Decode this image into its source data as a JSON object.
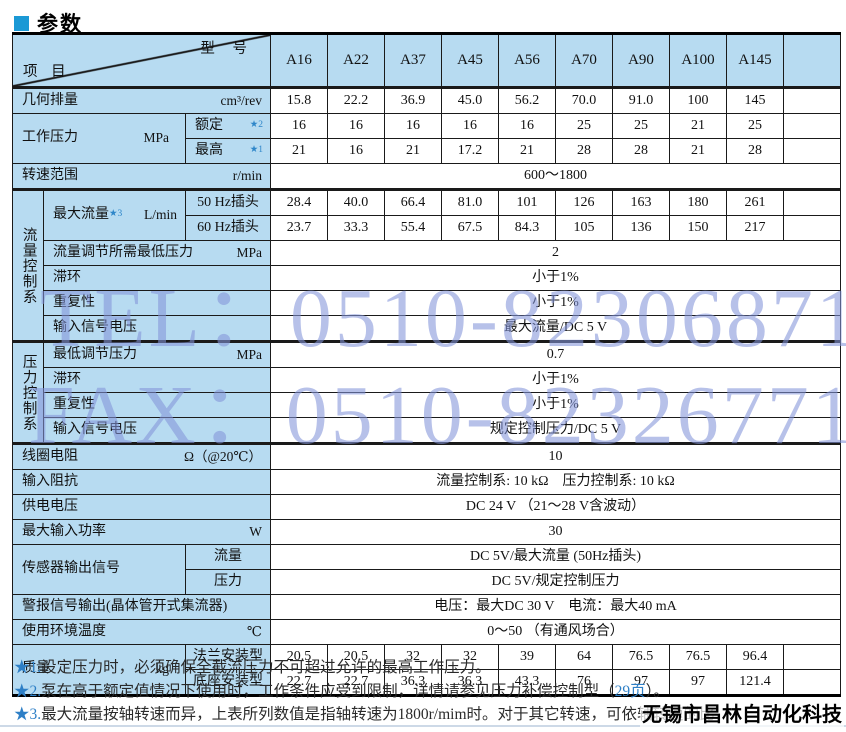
{
  "page": {
    "title": "参数"
  },
  "watermark": {
    "line1": "TEL：0510-82306871",
    "line2": "FAX：0510-82326771",
    "color": "#8495da"
  },
  "brand_overlay": "无锡市昌林自动化科技",
  "colors": {
    "header_bg": "#b7dbf1",
    "accent_blue": "#2e86c9",
    "title_square": "#1b99d5"
  },
  "table": {
    "corner": {
      "model_label": "型 号",
      "item_label": "项 目"
    },
    "models": [
      "A16",
      "A22",
      "A37",
      "A45",
      "A56",
      "A70",
      "A90",
      "A100",
      "A145"
    ],
    "rows": {
      "displacement": {
        "label": "几何排量",
        "unit": "cm³/rev",
        "values": [
          "15.8",
          "22.2",
          "36.9",
          "45.0",
          "56.2",
          "70.0",
          "91.0",
          "100",
          "145"
        ]
      },
      "working_pressure": {
        "label": "工作压力",
        "unit": "MPa",
        "rated": {
          "label": "额定",
          "star": "★2",
          "values": [
            "16",
            "16",
            "16",
            "16",
            "16",
            "25",
            "25",
            "21",
            "25"
          ]
        },
        "max": {
          "label": "最高",
          "star": "★1",
          "values": [
            "21",
            "16",
            "21",
            "17.2",
            "21",
            "28",
            "28",
            "21",
            "28"
          ]
        }
      },
      "speed_range": {
        "label": "转速范围",
        "unit": "r/min",
        "value": "600～1800"
      },
      "flow": {
        "section_label": "流量控制系",
        "max_flow": {
          "label": "最大流量",
          "star": "★3",
          "unit": "L/min",
          "hz50": {
            "label": "50 Hz插头",
            "values": [
              "28.4",
              "40.0",
              "66.4",
              "81.0",
              "101",
              "126",
              "163",
              "180",
              "261"
            ]
          },
          "hz60": {
            "label": "60 Hz插头",
            "values": [
              "23.7",
              "33.3",
              "55.4",
              "67.5",
              "84.3",
              "105",
              "136",
              "150",
              "217"
            ]
          }
        },
        "min_pressure": {
          "label": "流量调节所需最低压力",
          "unit": "MPa",
          "value": "2"
        },
        "hysteresis": {
          "label": "滞环",
          "value": "小于1%"
        },
        "repeatability": {
          "label": "重复性",
          "value": "小于1%"
        },
        "input_signal": {
          "label": "输入信号电压",
          "value": "最大流量/DC 5 V"
        }
      },
      "pressure": {
        "section_label": "压力控制系",
        "min_adjust": {
          "label": "最低调节压力",
          "unit": "MPa",
          "value": "0.7"
        },
        "hysteresis": {
          "label": "滞环",
          "value": "小于1%"
        },
        "repeatability": {
          "label": "重复性",
          "value": "小于1%"
        },
        "input_signal": {
          "label": "输入信号电压",
          "value": "规定控制压力/DC 5 V"
        }
      },
      "coil_resistance": {
        "label": "线圈电阻",
        "unit": "Ω（@20℃）",
        "value": "10"
      },
      "input_impedance": {
        "label": "输入阻抗",
        "value": "流量控制系: 10 kΩ　压力控制系: 10 kΩ"
      },
      "supply_voltage": {
        "label": "供电电压",
        "value": "DC 24 V （21～28 V含波动）"
      },
      "max_input_power": {
        "label": "最大输入功率",
        "unit": "W",
        "value": "30"
      },
      "sensor_output": {
        "label": "传感器输出信号",
        "flow": {
          "label": "流量",
          "value": "DC 5V/最大流量 (50Hz插头)"
        },
        "pressure": {
          "label": "压力",
          "value": "DC 5V/规定控制压力"
        }
      },
      "alarm_output": {
        "label": "警报信号输出(晶体管开式集流器)",
        "value": "电压：最大DC 30 V　电流：最大40 mA"
      },
      "ambient_temp": {
        "label": "使用环境温度",
        "unit": "℃",
        "value": "0～50 （有通风场合）"
      },
      "mass": {
        "label": "质量",
        "unit": "kg",
        "flange": {
          "label": "法兰安装型",
          "values": [
            "20.5",
            "20.5",
            "32",
            "32",
            "39",
            "64",
            "76.5",
            "76.5",
            "96.4"
          ]
        },
        "base": {
          "label": "底座安装型",
          "values": [
            "22.7",
            "22.7",
            "36.3",
            "36.3",
            "43.3",
            "76",
            "97",
            "97",
            "121.4"
          ]
        }
      }
    }
  },
  "footnotes": {
    "note1": {
      "marker": "★1.",
      "text": "设定压力时，必须确保全截流压力不可超过允许的最高工作压力。"
    },
    "note2": {
      "marker": "★2.",
      "text_pre": "泵在高于额定值情况下使用时，工作条件应受到限制，详情请参见压力补偿控制型（",
      "link": "29页",
      "text_post": "）。"
    },
    "note3": {
      "marker": "★3.",
      "text": "最大流量按轴转速而异，上表所列数值是指轴转速为1800r/mim时。对于其它转速，可依轴转速的比"
    }
  }
}
